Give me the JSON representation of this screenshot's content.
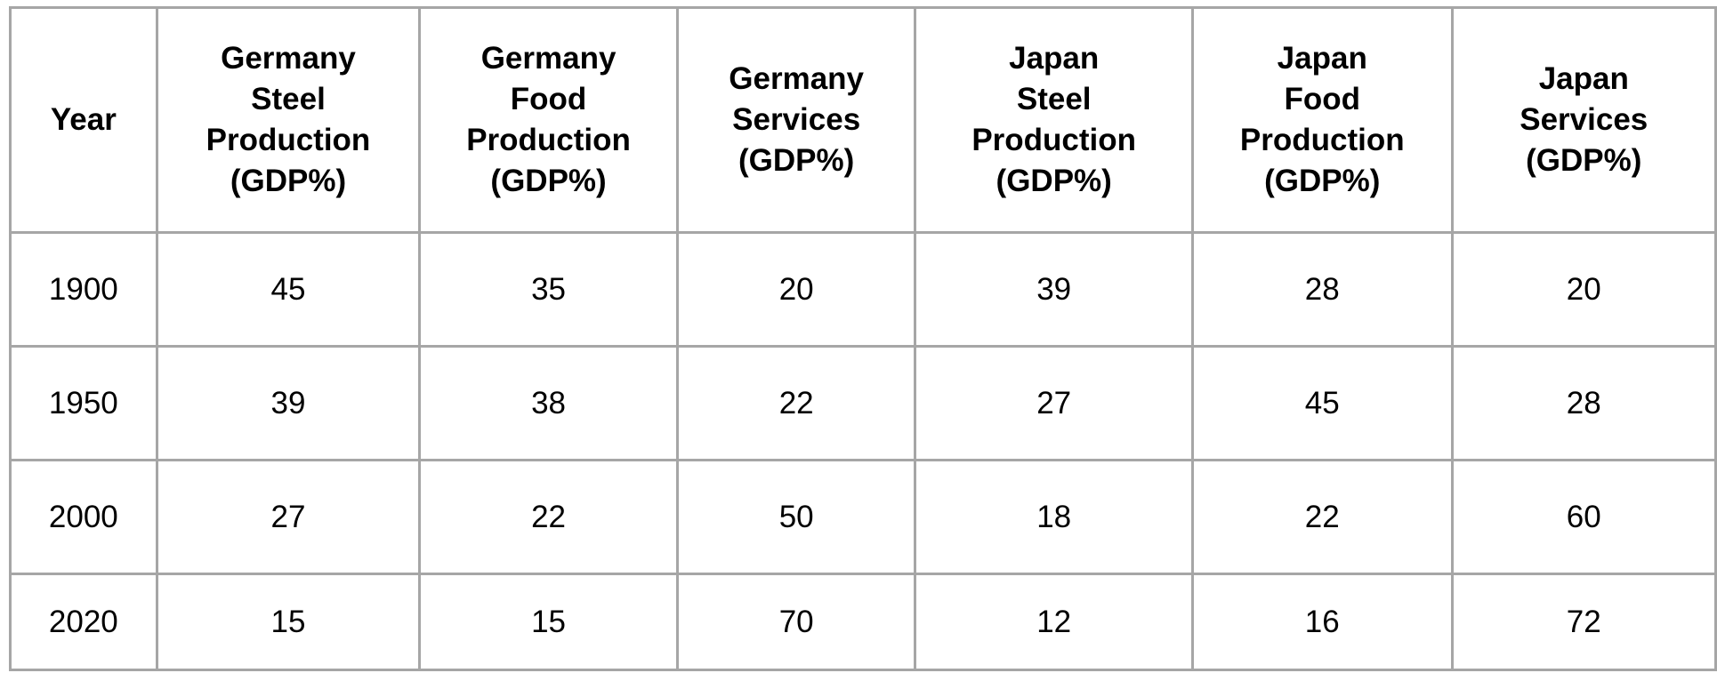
{
  "chart_data": {
    "type": "table",
    "columns": [
      "Year",
      "Germany Steel Production (GDP%)",
      "Germany Food Production (GDP%)",
      "Germany Services (GDP%)",
      "Japan Steel Production (GDP%)",
      "Japan Food Production (GDP%)",
      "Japan Services (GDP%)"
    ],
    "header_lines": [
      [
        "Year"
      ],
      [
        "Germany",
        "Steel",
        "Production",
        "(GDP%)"
      ],
      [
        "Germany",
        "Food",
        "Production",
        "(GDP%)"
      ],
      [
        "Germany",
        "Services",
        "(GDP%)"
      ],
      [
        "Japan",
        "Steel",
        "Production",
        "(GDP%)"
      ],
      [
        "Japan",
        "Food",
        "Production",
        "(GDP%)"
      ],
      [
        "Japan",
        "Services",
        "(GDP%)"
      ]
    ],
    "rows": [
      [
        "1900",
        "45",
        "35",
        "20",
        "39",
        "28",
        "20"
      ],
      [
        "1950",
        "39",
        "38",
        "22",
        "27",
        "45",
        "28"
      ],
      [
        "2000",
        "27",
        "22",
        "50",
        "18",
        "22",
        "60"
      ],
      [
        "2020",
        "15",
        "15",
        "70",
        "12",
        "16",
        "72"
      ]
    ],
    "colors": {
      "border": "#a6a6a6",
      "background": "#ffffff",
      "text": "#000000"
    }
  }
}
